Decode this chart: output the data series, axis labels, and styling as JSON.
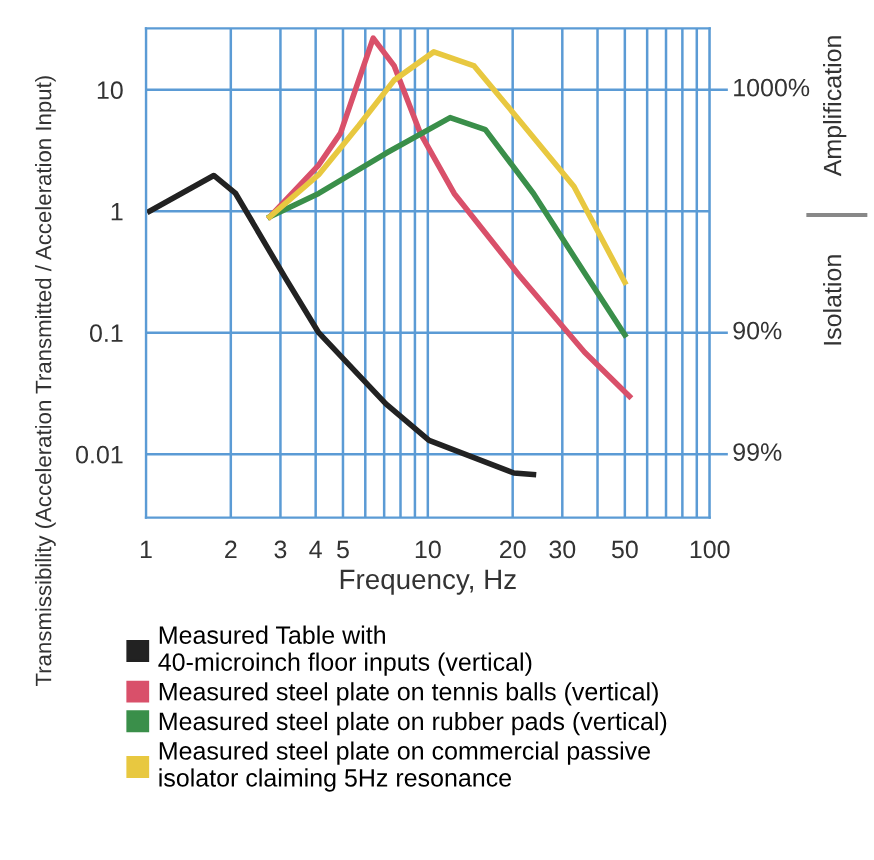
{
  "chart_data": {
    "type": "line",
    "xlabel": "Frequency, Hz",
    "ylabel": "Transmissibility (Acceleration Transmitted / Acceleration Input)",
    "log": "xy",
    "grid": true,
    "legend": "bottom",
    "marker": "none",
    "line_style": "solid",
    "xlim": [
      1,
      100
    ],
    "ylim": [
      0.003,
      32
    ],
    "xticks": [
      1,
      2,
      3,
      4,
      5,
      {
        "value": 6,
        "label": null
      },
      {
        "value": 7,
        "label": null
      },
      {
        "value": 8,
        "label": null
      },
      {
        "value": 9,
        "label": null
      },
      10,
      20,
      30,
      {
        "value": 40,
        "label": null
      },
      50,
      {
        "value": 60,
        "label": null
      },
      {
        "value": 70,
        "label": null
      },
      {
        "value": 80,
        "label": null
      },
      {
        "value": 90,
        "label": null
      },
      100
    ],
    "yticks": [
      0.01,
      0.1,
      1,
      10
    ],
    "annotations": [
      "Isolation",
      "Amplification",
      "1000%",
      "90%",
      "99%"
    ],
    "series": [
      {
        "name": "Measured Table with\n40-microinch floor inputs (vertical)",
        "color": "#222222",
        "x": [
          1.03,
          1.74,
          2.08,
          3.13,
          4.1,
          7.1,
          10.1,
          20.2,
          23.7
        ],
        "values": [
          1.0,
          1.97,
          1.4,
          0.28,
          0.1,
          0.026,
          0.013,
          0.007,
          0.0068
        ]
      },
      {
        "name": "Measured steel plate on tennis balls (vertical)",
        "color": "#d9506a",
        "x": [
          2.75,
          4.1,
          4.9,
          6.4,
          7.6,
          9.4,
          12.4,
          21,
          36,
          51.9
        ],
        "values": [
          0.9,
          2.4,
          4.4,
          26.6,
          15.7,
          4.4,
          1.4,
          0.3,
          0.069,
          0.03
        ]
      },
      {
        "name": "Measured steel plate on rubber pads (vertical)",
        "color": "#3a8f4a",
        "x": [
          2.75,
          4.1,
          7.1,
          12,
          16,
          23.7,
          36,
          50
        ],
        "values": [
          0.9,
          1.4,
          3.0,
          5.9,
          4.7,
          1.4,
          0.31,
          0.096
        ]
      },
      {
        "name": "Measured steel plate on commercial passive\nisolator claiming 5Hz resonance",
        "color": "#e8c840",
        "x": [
          2.75,
          4.1,
          5.7,
          7.6,
          10.5,
          14.6,
          21,
          33,
          50
        ],
        "values": [
          0.9,
          2.0,
          5.1,
          12,
          20.5,
          15.7,
          5.7,
          1.6,
          0.26
        ]
      }
    ]
  }
}
